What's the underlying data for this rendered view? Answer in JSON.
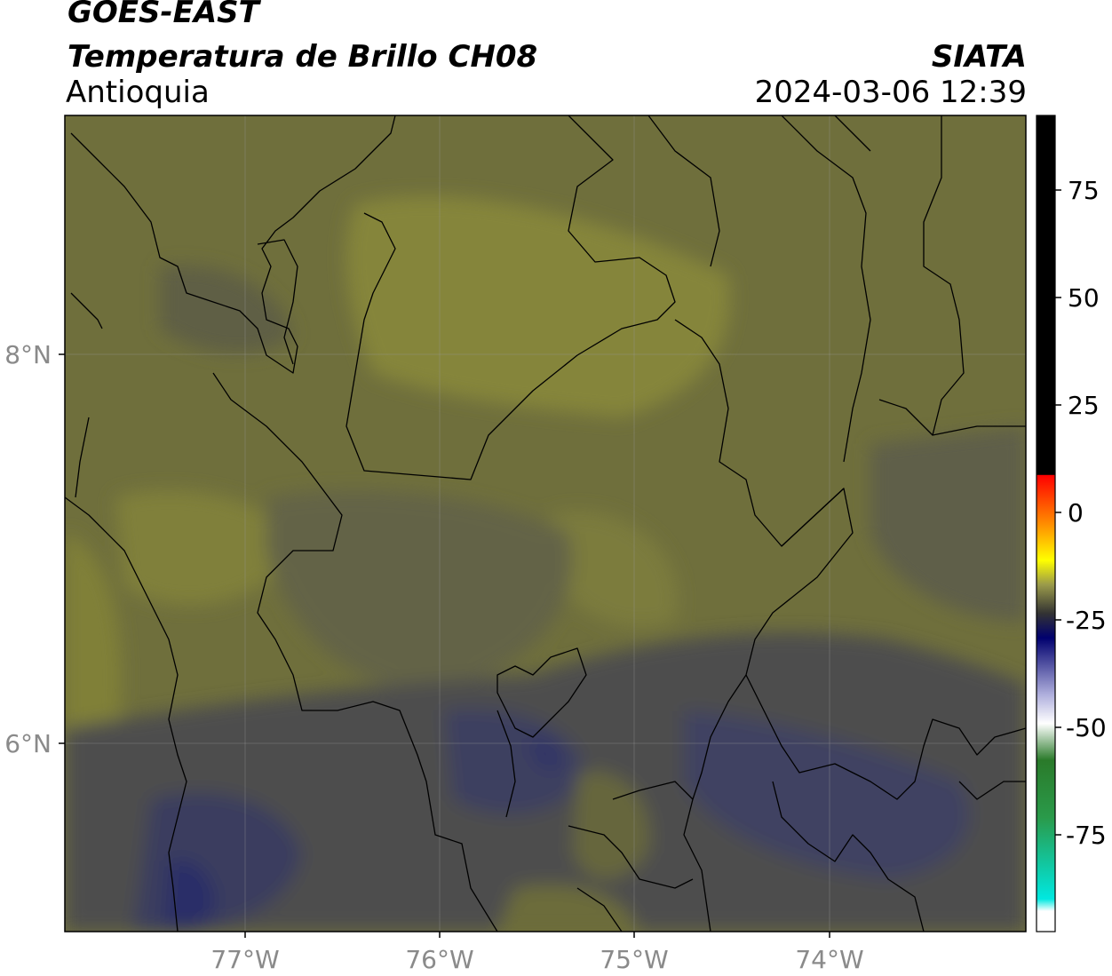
{
  "header": {
    "title_line1": "GOES-EAST",
    "title_line2": "Temperatura de Brillo CH08",
    "region": "Antioquia",
    "organization": "SIATA",
    "timestamp": "2024-03-06 12:39"
  },
  "map": {
    "longitude_ticks": [
      "77°W",
      "76°W",
      "75°W",
      "74°W"
    ],
    "latitude_ticks": [
      "8°N",
      "6°N"
    ]
  },
  "colorbar": {
    "tick_labels": [
      "75",
      "50",
      "25",
      "0",
      "-25",
      "-50",
      "-75"
    ]
  },
  "colors": {
    "olive_light": "#7f7f35",
    "olive_dark": "#616141",
    "gray": "#4f4f4f",
    "navy": "#2b2f66",
    "boundary": "#000000"
  }
}
